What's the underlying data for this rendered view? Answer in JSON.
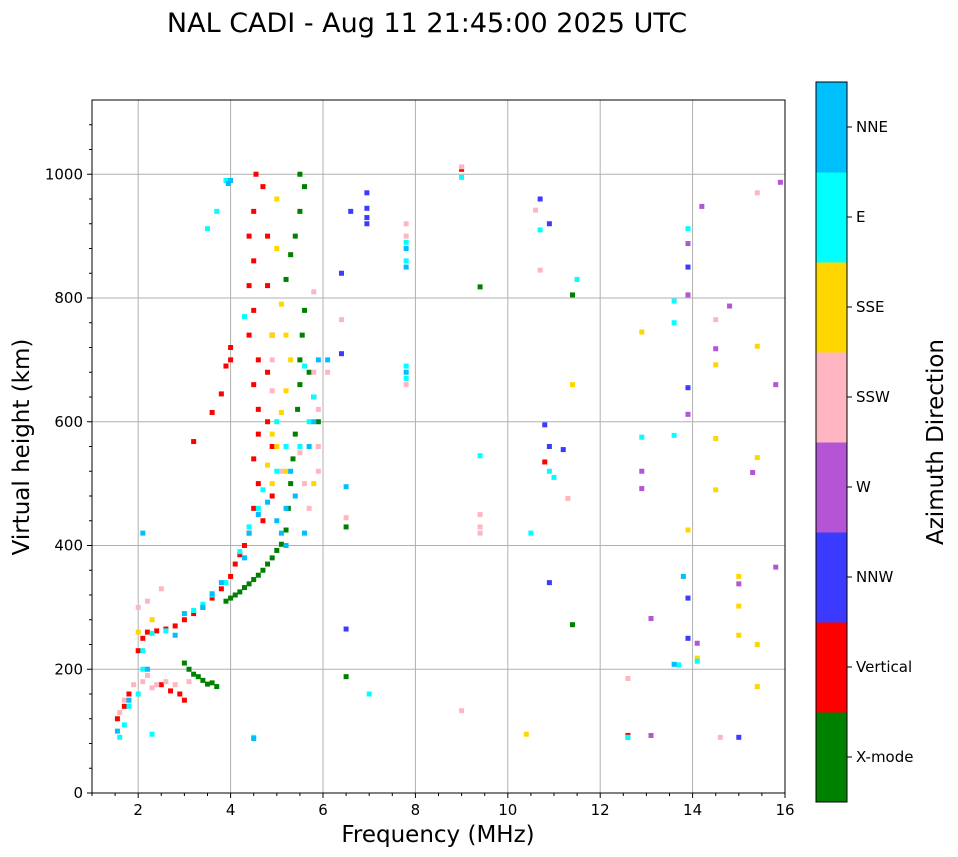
{
  "chart_data": {
    "type": "scatter",
    "title": "NAL CADI - Aug 11 21:45:00 2025 UTC",
    "xlabel": "Frequency (MHz)",
    "ylabel": "Virtual height (km)",
    "xlim": [
      1,
      16
    ],
    "ylim": [
      0,
      1120
    ],
    "xticks": [
      2,
      4,
      6,
      8,
      10,
      12,
      14,
      16
    ],
    "yticks": [
      0,
      200,
      400,
      600,
      800,
      1000
    ],
    "grid": true,
    "colorbar": {
      "label": "Azimuth Direction",
      "categories": [
        "X-mode",
        "Vertical",
        "NNW",
        "W",
        "SSW",
        "SSE",
        "E",
        "NNE"
      ],
      "colors": [
        "#008000",
        "#ff0000",
        "#3b3bff",
        "#b455d6",
        "#ffb6c1",
        "#ffd700",
        "#00ffff",
        "#00bfff"
      ]
    },
    "series": [
      {
        "name": "X-mode",
        "points": [
          [
            3.0,
            210
          ],
          [
            3.1,
            200
          ],
          [
            3.2,
            192
          ],
          [
            3.3,
            188
          ],
          [
            3.4,
            182
          ],
          [
            3.5,
            176
          ],
          [
            3.6,
            178
          ],
          [
            3.7,
            172
          ],
          [
            3.9,
            310
          ],
          [
            4.0,
            315
          ],
          [
            4.1,
            320
          ],
          [
            4.2,
            325
          ],
          [
            4.3,
            332
          ],
          [
            4.4,
            338
          ],
          [
            4.5,
            345
          ],
          [
            4.6,
            352
          ],
          [
            4.7,
            360
          ],
          [
            4.8,
            370
          ],
          [
            4.9,
            380
          ],
          [
            5.0,
            392
          ],
          [
            5.1,
            402
          ],
          [
            5.2,
            425
          ],
          [
            5.25,
            460
          ],
          [
            5.3,
            500
          ],
          [
            5.35,
            540
          ],
          [
            5.4,
            580
          ],
          [
            5.45,
            620
          ],
          [
            5.5,
            660
          ],
          [
            5.5,
            700
          ],
          [
            5.55,
            740
          ],
          [
            5.6,
            780
          ],
          [
            5.2,
            830
          ],
          [
            5.3,
            870
          ],
          [
            5.4,
            900
          ],
          [
            5.5,
            940
          ],
          [
            5.5,
            1000
          ],
          [
            5.6,
            980
          ],
          [
            5.7,
            680
          ],
          [
            5.8,
            640
          ],
          [
            5.9,
            600
          ],
          [
            6.5,
            188
          ],
          [
            6.5,
            430
          ],
          [
            9.4,
            818
          ],
          [
            11.4,
            272
          ],
          [
            11.4,
            805
          ],
          [
            12.6,
            90
          ]
        ]
      },
      {
        "name": "Vertical",
        "points": [
          [
            2.2,
            260
          ],
          [
            2.4,
            262
          ],
          [
            2.6,
            265
          ],
          [
            2.8,
            270
          ],
          [
            3.0,
            280
          ],
          [
            3.2,
            290
          ],
          [
            3.4,
            300
          ],
          [
            3.6,
            315
          ],
          [
            3.8,
            330
          ],
          [
            4.0,
            350
          ],
          [
            4.1,
            370
          ],
          [
            4.2,
            385
          ],
          [
            4.3,
            400
          ],
          [
            4.4,
            420
          ],
          [
            4.5,
            460
          ],
          [
            4.6,
            500
          ],
          [
            4.5,
            540
          ],
          [
            4.6,
            580
          ],
          [
            4.6,
            620
          ],
          [
            4.5,
            660
          ],
          [
            4.6,
            700
          ],
          [
            4.4,
            740
          ],
          [
            4.5,
            780
          ],
          [
            4.4,
            820
          ],
          [
            4.5,
            860
          ],
          [
            4.4,
            900
          ],
          [
            4.5,
            940
          ],
          [
            4.55,
            1000
          ],
          [
            4.7,
            980
          ],
          [
            4.8,
            900
          ],
          [
            4.8,
            820
          ],
          [
            4.9,
            740
          ],
          [
            4.8,
            680
          ],
          [
            4.8,
            600
          ],
          [
            4.9,
            560
          ],
          [
            4.9,
            480
          ],
          [
            4.7,
            440
          ],
          [
            4.0,
            700
          ],
          [
            4.0,
            720
          ],
          [
            3.9,
            690
          ],
          [
            3.8,
            645
          ],
          [
            3.6,
            615
          ],
          [
            3.2,
            568
          ],
          [
            1.55,
            120
          ],
          [
            1.7,
            140
          ],
          [
            1.8,
            160
          ],
          [
            2.0,
            230
          ],
          [
            2.1,
            250
          ],
          [
            2.5,
            175
          ],
          [
            2.7,
            165
          ],
          [
            2.9,
            160
          ],
          [
            3.0,
            150
          ],
          [
            9.0,
            1008
          ],
          [
            10.8,
            535
          ],
          [
            12.6,
            93
          ]
        ]
      },
      {
        "name": "NNW",
        "points": [
          [
            6.4,
            840
          ],
          [
            6.6,
            940
          ],
          [
            6.95,
            930
          ],
          [
            6.95,
            945
          ],
          [
            6.95,
            920
          ],
          [
            6.4,
            710
          ],
          [
            6.5,
            265
          ],
          [
            6.95,
            970
          ],
          [
            10.7,
            960
          ],
          [
            10.9,
            920
          ],
          [
            10.8,
            595
          ],
          [
            10.9,
            560
          ],
          [
            11.2,
            555
          ],
          [
            10.9,
            340
          ],
          [
            13.9,
            850
          ],
          [
            13.9,
            655
          ],
          [
            13.9,
            315
          ],
          [
            13.9,
            250
          ],
          [
            15.0,
            90
          ]
        ]
      },
      {
        "name": "W",
        "points": [
          [
            13.9,
            888
          ],
          [
            14.2,
            948
          ],
          [
            13.9,
            805
          ],
          [
            14.5,
            718
          ],
          [
            14.8,
            787
          ],
          [
            13.9,
            612
          ],
          [
            12.9,
            520
          ],
          [
            12.9,
            492
          ],
          [
            13.1,
            282
          ],
          [
            14.1,
            242
          ],
          [
            13.1,
            93
          ],
          [
            15.0,
            338
          ],
          [
            15.3,
            518
          ],
          [
            15.9,
            987
          ],
          [
            15.8,
            660
          ],
          [
            15.8,
            365
          ]
        ]
      },
      {
        "name": "SSW",
        "points": [
          [
            1.6,
            130
          ],
          [
            1.7,
            150
          ],
          [
            1.9,
            175
          ],
          [
            2.1,
            180
          ],
          [
            2.2,
            190
          ],
          [
            2.3,
            170
          ],
          [
            2.4,
            175
          ],
          [
            2.6,
            180
          ],
          [
            2.8,
            175
          ],
          [
            3.1,
            180
          ],
          [
            2.5,
            330
          ],
          [
            2.2,
            310
          ],
          [
            2.0,
            300
          ],
          [
            4.9,
            700
          ],
          [
            4.9,
            650
          ],
          [
            5.0,
            560
          ],
          [
            5.1,
            520
          ],
          [
            5.5,
            550
          ],
          [
            5.6,
            500
          ],
          [
            5.7,
            460
          ],
          [
            5.9,
            520
          ],
          [
            5.9,
            560
          ],
          [
            5.9,
            620
          ],
          [
            5.8,
            680
          ],
          [
            6.1,
            680
          ],
          [
            6.4,
            765
          ],
          [
            5.8,
            810
          ],
          [
            6.5,
            445
          ],
          [
            7.8,
            920
          ],
          [
            7.8,
            900
          ],
          [
            7.8,
            660
          ],
          [
            9.0,
            1012
          ],
          [
            9.4,
            450
          ],
          [
            9.4,
            430
          ],
          [
            9.4,
            420
          ],
          [
            9.0,
            133
          ],
          [
            10.6,
            942
          ],
          [
            10.7,
            845
          ],
          [
            11.3,
            476
          ],
          [
            12.6,
            185
          ],
          [
            14.5,
            765
          ],
          [
            14.6,
            90
          ],
          [
            15.4,
            970
          ]
        ]
      },
      {
        "name": "SSE",
        "points": [
          [
            5.0,
            960
          ],
          [
            5.0,
            880
          ],
          [
            5.1,
            790
          ],
          [
            5.2,
            740
          ],
          [
            5.3,
            700
          ],
          [
            4.9,
            740
          ],
          [
            5.2,
            650
          ],
          [
            5.1,
            615
          ],
          [
            4.9,
            580
          ],
          [
            5.0,
            560
          ],
          [
            5.2,
            520
          ],
          [
            4.8,
            530
          ],
          [
            4.9,
            500
          ],
          [
            5.8,
            500
          ],
          [
            2.0,
            260
          ],
          [
            2.3,
            280
          ],
          [
            11.4,
            660
          ],
          [
            12.9,
            745
          ],
          [
            13.9,
            425
          ],
          [
            14.5,
            692
          ],
          [
            14.5,
            573
          ],
          [
            14.5,
            490
          ],
          [
            15.0,
            350
          ],
          [
            15.0,
            302
          ],
          [
            15.0,
            255
          ],
          [
            15.4,
            722
          ],
          [
            15.4,
            542
          ],
          [
            15.4,
            240
          ],
          [
            15.4,
            172
          ],
          [
            14.1,
            218
          ],
          [
            10.4,
            95
          ]
        ]
      },
      {
        "name": "E",
        "points": [
          [
            1.6,
            90
          ],
          [
            1.7,
            110
          ],
          [
            1.8,
            140
          ],
          [
            2.0,
            160
          ],
          [
            2.1,
            200
          ],
          [
            2.1,
            230
          ],
          [
            2.3,
            258
          ],
          [
            2.6,
            262
          ],
          [
            3.2,
            295
          ],
          [
            3.4,
            305
          ],
          [
            3.6,
            320
          ],
          [
            3.9,
            340
          ],
          [
            4.2,
            390
          ],
          [
            4.4,
            430
          ],
          [
            4.6,
            460
          ],
          [
            4.7,
            490
          ],
          [
            5.0,
            520
          ],
          [
            5.2,
            560
          ],
          [
            5.0,
            600
          ],
          [
            5.5,
            560
          ],
          [
            5.7,
            600
          ],
          [
            5.8,
            640
          ],
          [
            5.6,
            690
          ],
          [
            3.9,
            990
          ],
          [
            3.7,
            940
          ],
          [
            3.5,
            912
          ],
          [
            4.3,
            770
          ],
          [
            4.5,
            90
          ],
          [
            7.8,
            890
          ],
          [
            7.8,
            860
          ],
          [
            7.8,
            690
          ],
          [
            7.8,
            670
          ],
          [
            9.0,
            995
          ],
          [
            9.4,
            545
          ],
          [
            10.5,
            420
          ],
          [
            10.7,
            910
          ],
          [
            10.9,
            520
          ],
          [
            11.0,
            510
          ],
          [
            11.5,
            830
          ],
          [
            12.6,
            90
          ],
          [
            12.9,
            575
          ],
          [
            13.6,
            795
          ],
          [
            13.6,
            760
          ],
          [
            13.6,
            578
          ],
          [
            13.9,
            912
          ],
          [
            13.7,
            207
          ],
          [
            14.1,
            213
          ],
          [
            7.0,
            160
          ],
          [
            2.3,
            95
          ]
        ]
      },
      {
        "name": "NNE",
        "points": [
          [
            1.55,
            100
          ],
          [
            1.8,
            150
          ],
          [
            2.1,
            420
          ],
          [
            2.2,
            200
          ],
          [
            2.8,
            255
          ],
          [
            3.0,
            290
          ],
          [
            3.4,
            300
          ],
          [
            3.6,
            322
          ],
          [
            3.8,
            340
          ],
          [
            4.3,
            380
          ],
          [
            4.4,
            420
          ],
          [
            4.6,
            450
          ],
          [
            4.8,
            470
          ],
          [
            5.0,
            440
          ],
          [
            5.1,
            420
          ],
          [
            5.2,
            400
          ],
          [
            5.3,
            520
          ],
          [
            5.4,
            480
          ],
          [
            5.2,
            460
          ],
          [
            5.6,
            420
          ],
          [
            5.7,
            560
          ],
          [
            5.8,
            600
          ],
          [
            5.9,
            700
          ],
          [
            6.1,
            700
          ],
          [
            6.5,
            495
          ],
          [
            3.95,
            985
          ],
          [
            7.8,
            880
          ],
          [
            7.8,
            850
          ],
          [
            7.8,
            680
          ],
          [
            13.6,
            208
          ],
          [
            13.8,
            350
          ],
          [
            4.0,
            990
          ],
          [
            4.5,
            88
          ]
        ]
      }
    ]
  }
}
